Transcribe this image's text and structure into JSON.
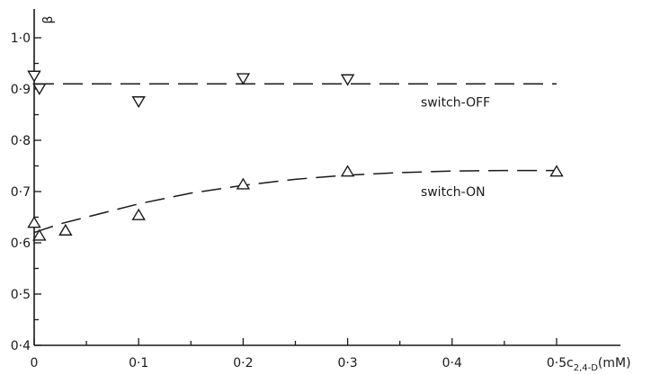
{
  "chart_data": {
    "type": "scatter",
    "title": "",
    "xlabel": "c",
    "xlabel_subscript": "2,4-D",
    "xlabel_unit": "(mM)",
    "ylabel": "β",
    "xlim": [
      0,
      0.5
    ],
    "ylim": [
      0.4,
      1.05
    ],
    "x_ticks": [
      0,
      0.1,
      0.2,
      0.3,
      0.4,
      0.5
    ],
    "x_tick_labels": [
      "0",
      "0·1",
      "0·2",
      "0·3",
      "0·4",
      "0·5"
    ],
    "y_ticks": [
      0.4,
      0.5,
      0.6,
      0.7,
      0.8,
      0.9,
      1.0
    ],
    "y_tick_labels": [
      "0·4",
      "0·5",
      "0·6",
      "0·7",
      "0·8",
      "0·9",
      "1·0"
    ],
    "grid": false,
    "series": [
      {
        "name": "switch-OFF",
        "marker": "triangle-down",
        "x": [
          0,
          0.005,
          0.1,
          0.2,
          0.3
        ],
        "y": [
          0.925,
          0.9,
          0.875,
          0.92,
          0.918
        ],
        "fit": {
          "x": [
            0,
            0.5
          ],
          "y": [
            0.91,
            0.91
          ]
        }
      },
      {
        "name": "switch-ON",
        "marker": "triangle-up",
        "x": [
          0,
          0.005,
          0.03,
          0.1,
          0.2,
          0.3,
          0.5
        ],
        "y": [
          0.64,
          0.615,
          0.625,
          0.655,
          0.715,
          0.74,
          0.74
        ],
        "fit": {
          "x": [
            0,
            0.025,
            0.05,
            0.1,
            0.15,
            0.2,
            0.25,
            0.3,
            0.35,
            0.4,
            0.45,
            0.5
          ],
          "y": [
            0.62,
            0.637,
            0.65,
            0.676,
            0.697,
            0.712,
            0.724,
            0.732,
            0.737,
            0.74,
            0.741,
            0.741
          ]
        }
      }
    ],
    "annotations": [
      {
        "text": "switch-OFF",
        "x": 0.37,
        "y": 0.875
      },
      {
        "text": "switch-ON",
        "x": 0.37,
        "y": 0.7
      }
    ]
  }
}
